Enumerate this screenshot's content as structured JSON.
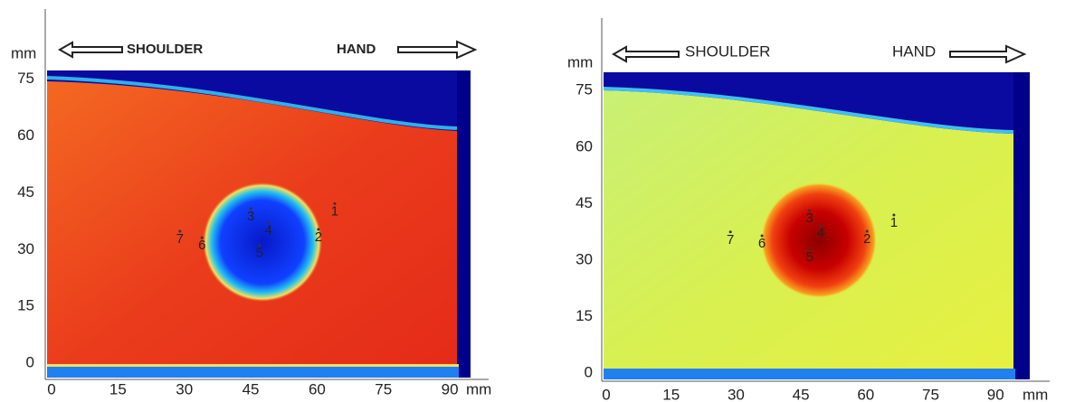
{
  "panels": [
    {
      "direction_left": "SHOULDER",
      "direction_right": "HAND",
      "y_unit": "mm",
      "x_unit": "mm",
      "xticks": [
        0,
        15,
        30,
        45,
        60,
        75,
        90
      ],
      "yticks": [
        0,
        15,
        30,
        45,
        60,
        75
      ],
      "points": [
        {
          "label": "1",
          "x": 64,
          "y": 40
        },
        {
          "label": "2",
          "x": 60.3,
          "y": 33.2
        },
        {
          "label": "3",
          "x": 45,
          "y": 38.7
        },
        {
          "label": "4",
          "x": 49,
          "y": 35
        },
        {
          "label": "5",
          "x": 47,
          "y": 29
        },
        {
          "label": "6",
          "x": 34,
          "y": 31
        },
        {
          "label": "7",
          "x": 29,
          "y": 32.7
        }
      ]
    },
    {
      "direction_left": "SHOULDER",
      "direction_right": "HAND",
      "y_unit": "mm",
      "x_unit": "mm",
      "xticks": [
        0,
        15,
        30,
        45,
        60,
        75,
        90
      ],
      "yticks": [
        0,
        15,
        30,
        45,
        60,
        75
      ],
      "points": [
        {
          "label": "1",
          "x": 66.5,
          "y": 39.8
        },
        {
          "label": "2",
          "x": 60.3,
          "y": 35.5
        },
        {
          "label": "3",
          "x": 47,
          "y": 41
        },
        {
          "label": "4",
          "x": 49.6,
          "y": 37
        },
        {
          "label": "5",
          "x": 47,
          "y": 30.7
        },
        {
          "label": "6",
          "x": 36,
          "y": 34.3
        },
        {
          "label": "7",
          "x": 28.7,
          "y": 35.3
        }
      ]
    }
  ]
}
